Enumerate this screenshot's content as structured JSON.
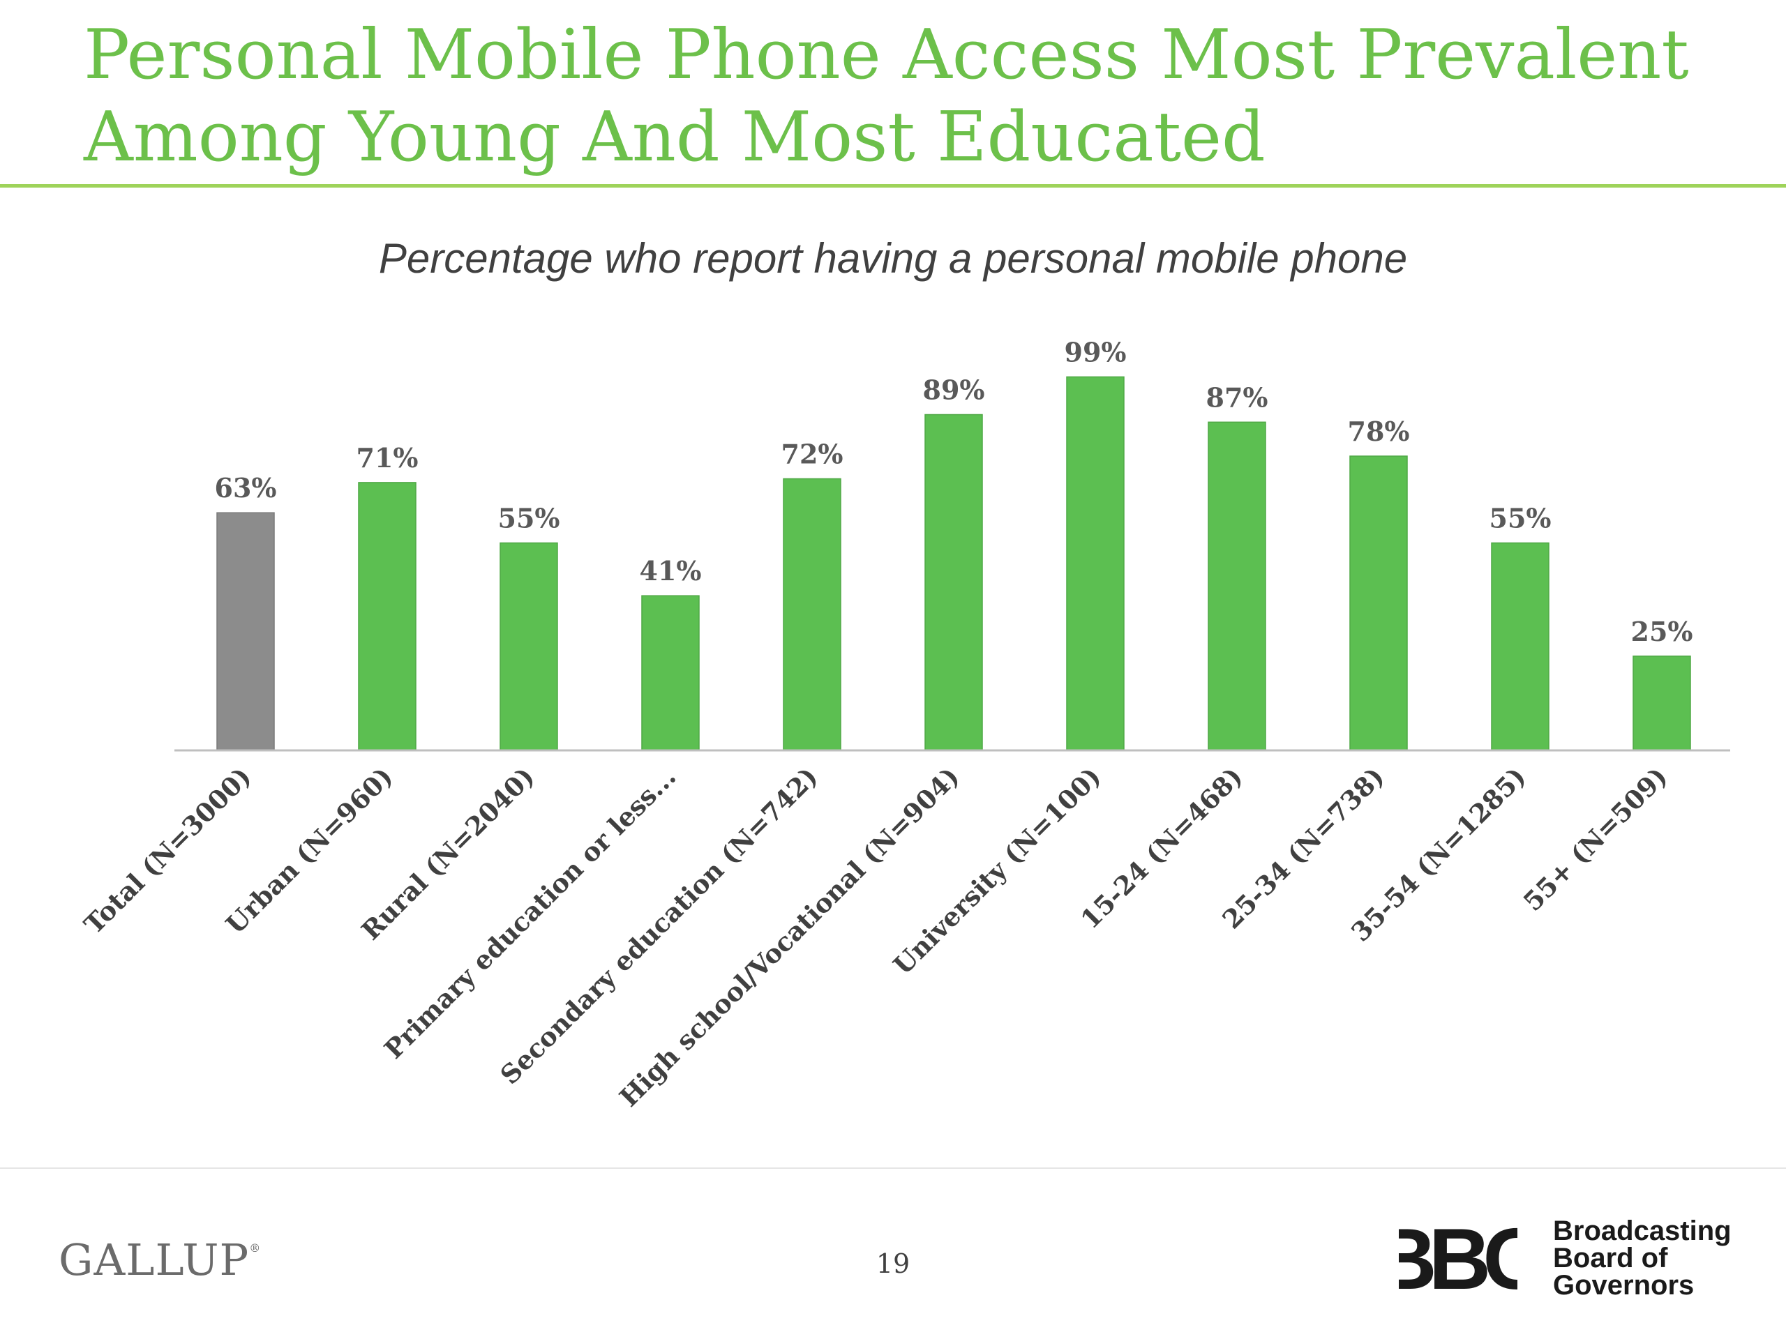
{
  "title": {
    "line1": "Personal Mobile Phone Access Most Prevalent",
    "line2": "Among Young And Most Educated"
  },
  "colors": {
    "title": "#6cc04a",
    "bar_primary": "#5cbf51",
    "bar_total": "#8c8c8c",
    "axis": "#bfbfbf"
  },
  "chart_data": {
    "type": "bar",
    "title": "Percentage who report having a personal mobile phone",
    "xlabel": "",
    "ylabel": "",
    "ylim": [
      0,
      100
    ],
    "grid": false,
    "categories": [
      "Total (N=3000)",
      "Urban (N=960)",
      "Rural (N=2040)",
      "Primary education or less...",
      "Secondary education (N=742)",
      "High school/Vocational (N=904)",
      "University (N=100)",
      "15-24 (N=468)",
      "25-34 (N=738)",
      "35-54 (N=1285)",
      "55+ (N=509)"
    ],
    "values": [
      63,
      71,
      55,
      41,
      72,
      89,
      99,
      87,
      78,
      55,
      25
    ],
    "labels": [
      "63%",
      "71%",
      "55%",
      "41%",
      "72%",
      "89%",
      "99%",
      "87%",
      "78%",
      "55%",
      "25%"
    ],
    "highlight_category": "Total (N=3000)"
  },
  "footer": {
    "brand_left": "GALLUP",
    "brand_left_mark": "®",
    "page_number": "19",
    "brand_right_line1": "Broadcasting",
    "brand_right_line2": "Board of",
    "brand_right_line3": "Governors",
    "brand_right_logo": "BBG"
  }
}
